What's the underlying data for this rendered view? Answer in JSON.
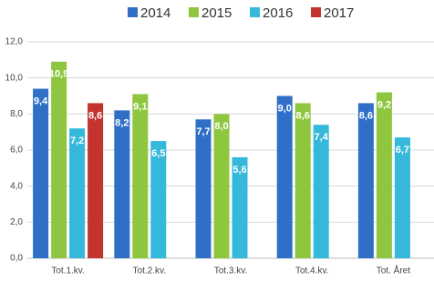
{
  "chart_data": {
    "type": "bar",
    "categories": [
      "Tot.1.kv.",
      "Tot.2.kv.",
      "Tot.3.kv.",
      "Tot.4.kv.",
      "Tot. Året"
    ],
    "series": [
      {
        "name": "2014",
        "color": "#2f6fc6",
        "values": [
          9.4,
          8.2,
          7.7,
          9.0,
          8.6
        ],
        "value_labels": [
          "9,4",
          "8,2",
          "7,7",
          "9,0",
          "8,6"
        ]
      },
      {
        "name": "2015",
        "color": "#8fc63f",
        "values": [
          10.9,
          9.1,
          8.0,
          8.6,
          9.2
        ],
        "value_labels": [
          "10,9",
          "9,1",
          "8,0",
          "8,6",
          "9,2"
        ]
      },
      {
        "name": "2016",
        "color": "#35b8da",
        "values": [
          7.2,
          6.5,
          5.6,
          7.4,
          6.7
        ],
        "value_labels": [
          "7,2",
          "6,5",
          "5,6",
          "7,4",
          "6,7"
        ]
      },
      {
        "name": "2017",
        "color": "#c3342e",
        "values": [
          8.6,
          null,
          null,
          null,
          null
        ],
        "value_labels": [
          "8,6",
          null,
          null,
          null,
          null
        ]
      }
    ],
    "ylim": [
      0,
      12
    ],
    "yticks": [
      {
        "value": 0,
        "label": "0,0"
      },
      {
        "value": 2,
        "label": "2,0"
      },
      {
        "value": 4,
        "label": "4,0"
      },
      {
        "value": 6,
        "label": "6,0"
      },
      {
        "value": 8,
        "label": "8,0"
      },
      {
        "value": 10,
        "label": "10,0"
      },
      {
        "value": 12,
        "label": "12,0"
      }
    ],
    "grid": true,
    "legend": "top"
  }
}
